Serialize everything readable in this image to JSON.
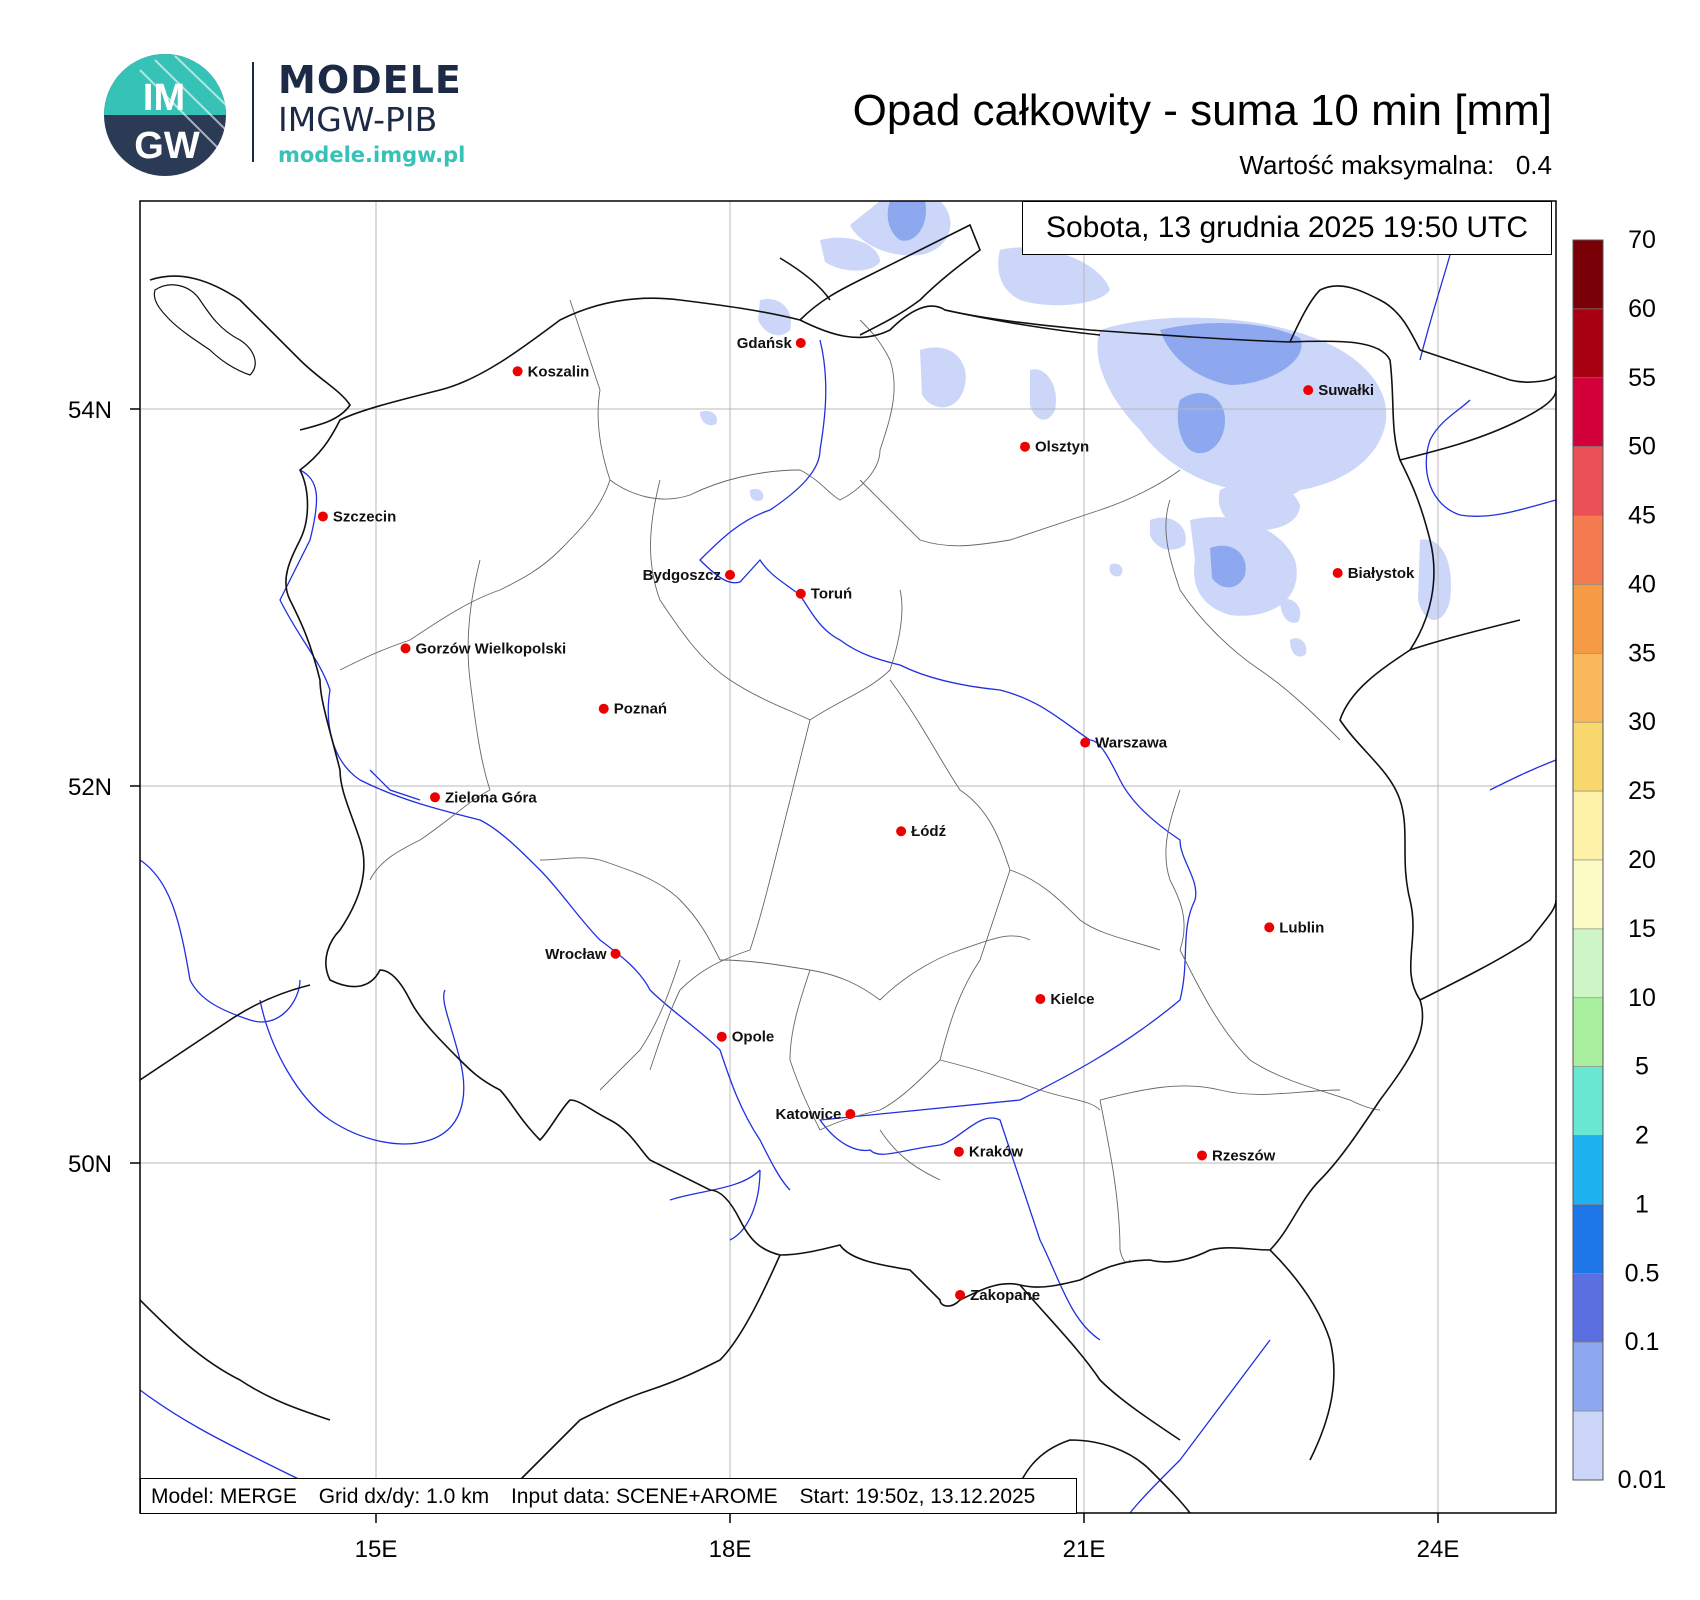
{
  "branding": {
    "logo_text_top": "IM",
    "logo_text_bottom": "GW",
    "title": "MODELE",
    "subtitle": "IMGW-PIB",
    "url": "modele.imgw.pl",
    "accent_color": "#37c2b7",
    "dark_color": "#1c2a45"
  },
  "header": {
    "title": "Opad całkowity - suma 10 min [mm]",
    "max_label": "Wartość maksymalna:",
    "max_value": "0.4"
  },
  "date_label": "Sobota, 13 grudnia 2025 19:50 UTC",
  "info_bar": {
    "model": "Model: MERGE",
    "grid": "Grid dx/dy: 1.0 km",
    "input": "Input data: SCENE+AROME",
    "start": "Start: 19:50z, 13.12.2025"
  },
  "axes": {
    "lat_labels": [
      "54N",
      "52N",
      "50N"
    ],
    "lon_labels": [
      "15E",
      "18E",
      "21E",
      "24E"
    ],
    "lat_values": [
      54,
      52,
      50
    ],
    "lon_values": [
      15,
      18,
      21,
      24
    ],
    "grid": true
  },
  "colorbar": {
    "labels": [
      "70",
      "60",
      "55",
      "50",
      "45",
      "40",
      "35",
      "30",
      "25",
      "20",
      "15",
      "10",
      "5",
      "2",
      "1",
      "0.5",
      "0.1",
      "0.01"
    ],
    "colors": [
      "#7a0008",
      "#a70010",
      "#d2003a",
      "#e85055",
      "#f47b50",
      "#f69a43",
      "#f9b65a",
      "#f8d76c",
      "#fdf2a8",
      "#fbfbc6",
      "#cdf5c6",
      "#a8f0a0",
      "#68e7d2",
      "#1eb3f0",
      "#1e77e8",
      "#5a6fe0",
      "#8ea8f0",
      "#ccd6f8"
    ]
  },
  "cities": [
    {
      "name": "Gdańsk",
      "lon": 18.6,
      "lat": 54.35
    },
    {
      "name": "Koszalin",
      "lon": 16.2,
      "lat": 54.2
    },
    {
      "name": "Suwałki",
      "lon": 22.9,
      "lat": 54.1
    },
    {
      "name": "Olsztyn",
      "lon": 20.5,
      "lat": 53.8
    },
    {
      "name": "Szczecin",
      "lon": 14.55,
      "lat": 53.43
    },
    {
      "name": "Białystok",
      "lon": 23.15,
      "lat": 53.13
    },
    {
      "name": "Bydgoszcz",
      "lon": 18.0,
      "lat": 53.12
    },
    {
      "name": "Toruń",
      "lon": 18.6,
      "lat": 53.02
    },
    {
      "name": "Gorzów Wielkopolski",
      "lon": 15.25,
      "lat": 52.73
    },
    {
      "name": "Poznań",
      "lon": 16.93,
      "lat": 52.41
    },
    {
      "name": "Warszawa",
      "lon": 21.01,
      "lat": 52.23
    },
    {
      "name": "Zielona Góra",
      "lon": 15.5,
      "lat": 51.94
    },
    {
      "name": "Łódź",
      "lon": 19.45,
      "lat": 51.76
    },
    {
      "name": "Lublin",
      "lon": 22.57,
      "lat": 51.25
    },
    {
      "name": "Wrocław",
      "lon": 17.03,
      "lat": 51.11
    },
    {
      "name": "Kielce",
      "lon": 20.63,
      "lat": 50.87
    },
    {
      "name": "Opole",
      "lon": 17.93,
      "lat": 50.67
    },
    {
      "name": "Katowice",
      "lon": 19.02,
      "lat": 50.26
    },
    {
      "name": "Kraków",
      "lon": 19.94,
      "lat": 50.06
    },
    {
      "name": "Rzeszów",
      "lon": 22.0,
      "lat": 50.04
    },
    {
      "name": "Zakopane",
      "lon": 19.95,
      "lat": 49.3
    }
  ]
}
